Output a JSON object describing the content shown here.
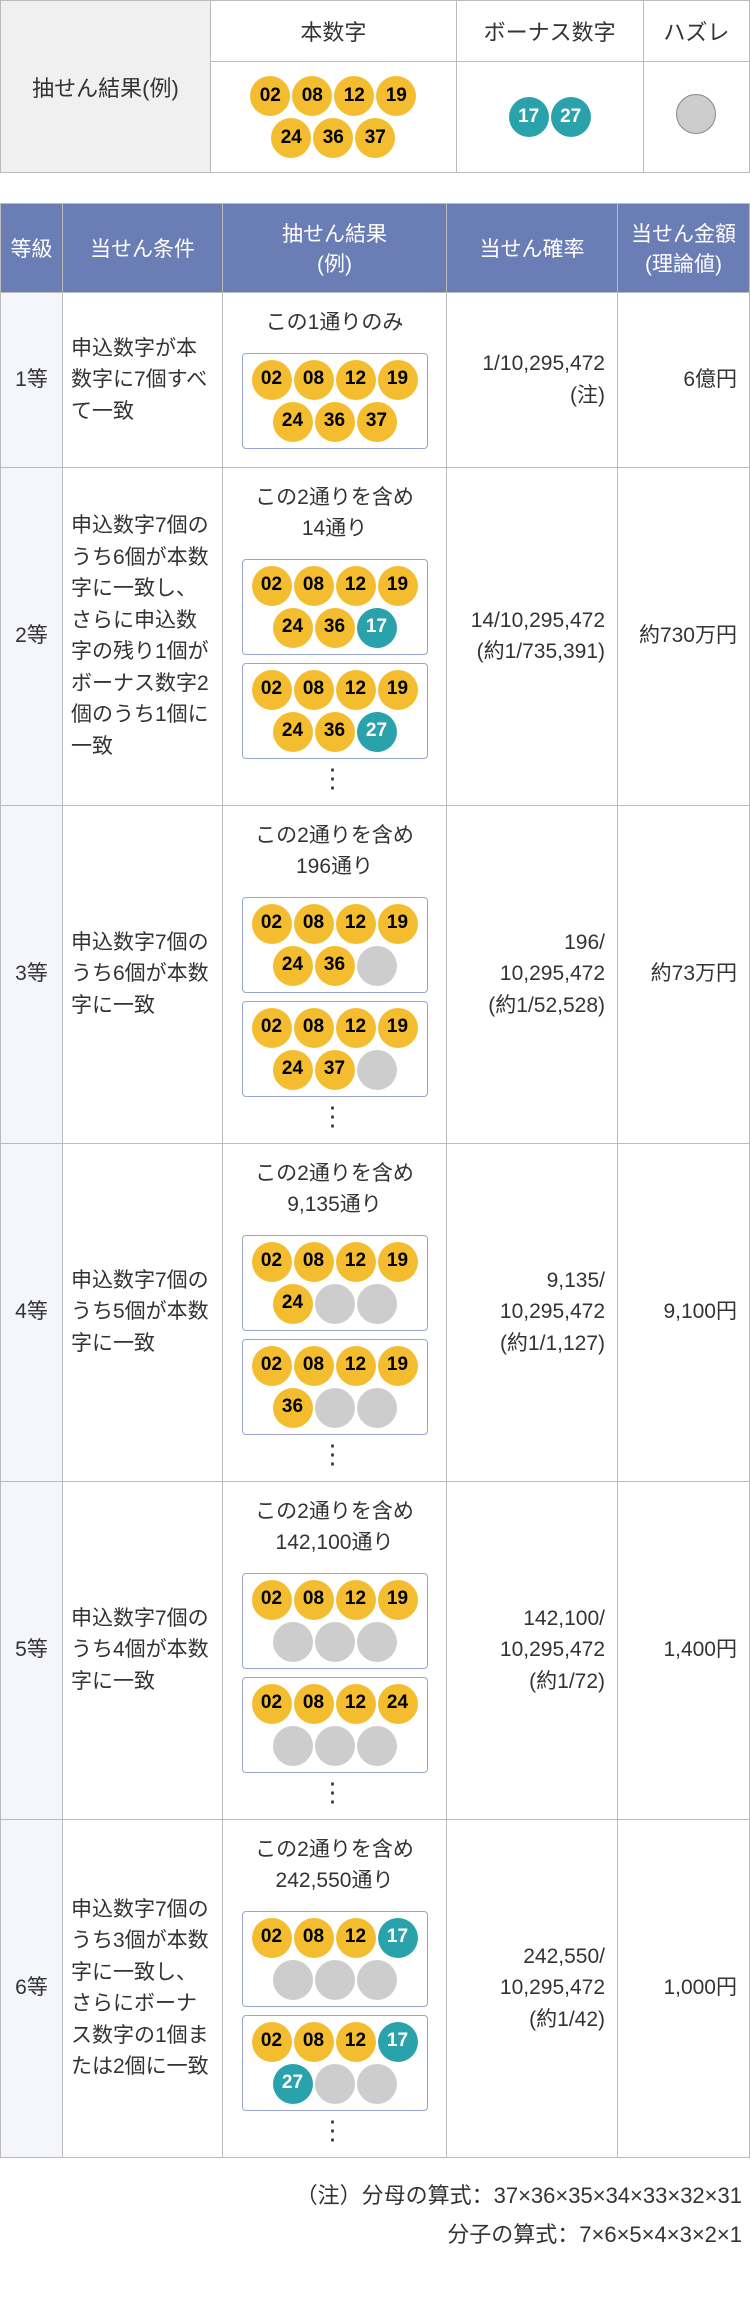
{
  "colors": {
    "main_ball": "#f3bd2f",
    "bonus_ball": "#2aa2ac",
    "miss_ball": "#cdcdcd",
    "header_bg": "#6b7db5",
    "rank_bg": "#f4f6fc",
    "legend_bg": "#f0f0f0",
    "border": "#bbbbbb",
    "box_border": "#9aa5cc"
  },
  "legend": {
    "row_label": "抽せん結果(例)",
    "main_header": "本数字",
    "bonus_header": "ボーナス数字",
    "miss_header": "ハズレ",
    "main_numbers": [
      "02",
      "08",
      "12",
      "19",
      "24",
      "36",
      "37"
    ],
    "bonus_numbers": [
      "17",
      "27"
    ]
  },
  "headers": {
    "rank": "等級",
    "condition": "当せん条件",
    "example": "抽せん結果\n(例)",
    "probability": "当せん確率",
    "prize": "当せん金額\n(理論値)"
  },
  "rows": [
    {
      "rank": "1等",
      "condition": "申込数字が本数字に7個すべて一致",
      "example_caption": "この1通りのみ",
      "examples": [
        [
          {
            "t": "m",
            "v": "02"
          },
          {
            "t": "m",
            "v": "08"
          },
          {
            "t": "m",
            "v": "12"
          },
          {
            "t": "m",
            "v": "19"
          },
          {
            "t": "m",
            "v": "24"
          },
          {
            "t": "m",
            "v": "36"
          },
          {
            "t": "m",
            "v": "37"
          }
        ]
      ],
      "show_vdots": false,
      "probability": "1/10,295,472\n(注)",
      "prize": "6億円"
    },
    {
      "rank": "2等",
      "condition": "申込数字7個のうち6個が本数字に一致し、さらに申込数字の残り1個がボーナス数字2個のうち1個に一致",
      "example_caption": "この2通りを含め\n14通り",
      "examples": [
        [
          {
            "t": "m",
            "v": "02"
          },
          {
            "t": "m",
            "v": "08"
          },
          {
            "t": "m",
            "v": "12"
          },
          {
            "t": "m",
            "v": "19"
          },
          {
            "t": "m",
            "v": "24"
          },
          {
            "t": "m",
            "v": "36"
          },
          {
            "t": "b",
            "v": "17"
          }
        ],
        [
          {
            "t": "m",
            "v": "02"
          },
          {
            "t": "m",
            "v": "08"
          },
          {
            "t": "m",
            "v": "12"
          },
          {
            "t": "m",
            "v": "19"
          },
          {
            "t": "m",
            "v": "24"
          },
          {
            "t": "m",
            "v": "36"
          },
          {
            "t": "b",
            "v": "27"
          }
        ]
      ],
      "show_vdots": true,
      "probability": "14/10,295,472\n(約1/735,391)",
      "prize": "約730万円"
    },
    {
      "rank": "3等",
      "condition": "申込数字7個のうち6個が本数字に一致",
      "example_caption": "この2通りを含め\n196通り",
      "examples": [
        [
          {
            "t": "m",
            "v": "02"
          },
          {
            "t": "m",
            "v": "08"
          },
          {
            "t": "m",
            "v": "12"
          },
          {
            "t": "m",
            "v": "19"
          },
          {
            "t": "m",
            "v": "24"
          },
          {
            "t": "m",
            "v": "36"
          },
          {
            "t": "x"
          }
        ],
        [
          {
            "t": "m",
            "v": "02"
          },
          {
            "t": "m",
            "v": "08"
          },
          {
            "t": "m",
            "v": "12"
          },
          {
            "t": "m",
            "v": "19"
          },
          {
            "t": "m",
            "v": "24"
          },
          {
            "t": "m",
            "v": "37"
          },
          {
            "t": "x"
          }
        ]
      ],
      "show_vdots": true,
      "probability": "196/\n10,295,472\n(約1/52,528)",
      "prize": "約73万円"
    },
    {
      "rank": "4等",
      "condition": "申込数字7個のうち5個が本数字に一致",
      "example_caption": "この2通りを含め\n9,135通り",
      "examples": [
        [
          {
            "t": "m",
            "v": "02"
          },
          {
            "t": "m",
            "v": "08"
          },
          {
            "t": "m",
            "v": "12"
          },
          {
            "t": "m",
            "v": "19"
          },
          {
            "t": "m",
            "v": "24"
          },
          {
            "t": "x"
          },
          {
            "t": "x"
          }
        ],
        [
          {
            "t": "m",
            "v": "02"
          },
          {
            "t": "m",
            "v": "08"
          },
          {
            "t": "m",
            "v": "12"
          },
          {
            "t": "m",
            "v": "19"
          },
          {
            "t": "m",
            "v": "36"
          },
          {
            "t": "x"
          },
          {
            "t": "x"
          }
        ]
      ],
      "show_vdots": true,
      "probability": "9,135/\n10,295,472\n(約1/1,127)",
      "prize": "9,100円"
    },
    {
      "rank": "5等",
      "condition": "申込数字7個のうち4個が本数字に一致",
      "example_caption": "この2通りを含め\n142,100通り",
      "examples": [
        [
          {
            "t": "m",
            "v": "02"
          },
          {
            "t": "m",
            "v": "08"
          },
          {
            "t": "m",
            "v": "12"
          },
          {
            "t": "m",
            "v": "19"
          },
          {
            "t": "x"
          },
          {
            "t": "x"
          },
          {
            "t": "x"
          }
        ],
        [
          {
            "t": "m",
            "v": "02"
          },
          {
            "t": "m",
            "v": "08"
          },
          {
            "t": "m",
            "v": "12"
          },
          {
            "t": "m",
            "v": "24"
          },
          {
            "t": "x"
          },
          {
            "t": "x"
          },
          {
            "t": "x"
          }
        ]
      ],
      "show_vdots": true,
      "probability": "142,100/\n10,295,472\n(約1/72)",
      "prize": "1,400円"
    },
    {
      "rank": "6等",
      "condition": "申込数字7個のうち3個が本数字に一致し、さらにボーナス数字の1個または2個に一致",
      "example_caption": "この2通りを含め\n242,550通り",
      "examples": [
        [
          {
            "t": "m",
            "v": "02"
          },
          {
            "t": "m",
            "v": "08"
          },
          {
            "t": "m",
            "v": "12"
          },
          {
            "t": "b",
            "v": "17"
          },
          {
            "t": "x"
          },
          {
            "t": "x"
          },
          {
            "t": "x"
          }
        ],
        [
          {
            "t": "m",
            "v": "02"
          },
          {
            "t": "m",
            "v": "08"
          },
          {
            "t": "m",
            "v": "12"
          },
          {
            "t": "b",
            "v": "17"
          },
          {
            "t": "b",
            "v": "27"
          },
          {
            "t": "x"
          },
          {
            "t": "x"
          }
        ]
      ],
      "show_vdots": true,
      "probability": "242,550/\n10,295,472\n(約1/42)",
      "prize": "1,000円"
    }
  ],
  "footnote_line1": "（注）分母の算式：37×36×35×34×33×32×31",
  "footnote_line2": "分子の算式：7×6×5×4×3×2×1"
}
